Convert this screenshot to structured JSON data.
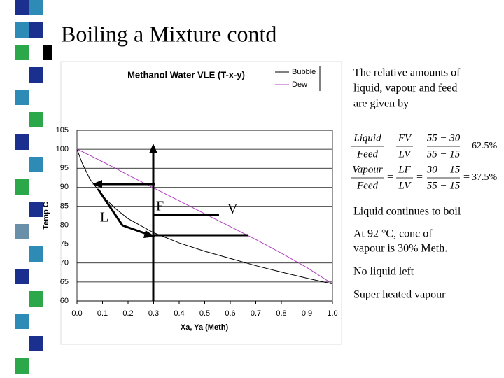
{
  "title": "Boiling a Mixture contd",
  "intro": [
    "The relative amounts of",
    "liquid, vapour and feed",
    "are given by"
  ],
  "equals": "=",
  "formulas": [
    {
      "terms": [
        [
          "Liquid",
          "Feed"
        ],
        [
          "FV",
          "LV"
        ],
        [
          "55 − 30",
          "55 − 15"
        ]
      ],
      "result": "62.5%"
    },
    {
      "terms": [
        [
          "Vapour",
          "Feed"
        ],
        [
          "LF",
          "LV"
        ],
        [
          "30 − 15",
          "55 − 15"
        ]
      ],
      "result": "37.5%"
    }
  ],
  "notes": [
    [
      "Liquid continues to boil"
    ],
    [
      "At 92 °C, conc of",
      "vapour is 30% Meth."
    ],
    [
      "No liquid left"
    ],
    [
      "Super heated vapour"
    ]
  ],
  "chart_data": {
    "type": "line",
    "title": "Methanol Water VLE (T-x-y)",
    "x_label": "Xa, Ya (Meth)",
    "y_label": "Temp C",
    "x": [
      0,
      0.02,
      0.05,
      0.1,
      0.15,
      0.2,
      0.3,
      0.4,
      0.5,
      0.6,
      0.7,
      0.8,
      0.9,
      1.0
    ],
    "series": [
      {
        "name": "Bubble",
        "color": "#000000",
        "values": [
          100,
          96.4,
          92.2,
          87.7,
          84.4,
          81.7,
          78,
          75.3,
          73.1,
          71.2,
          69.3,
          67.6,
          66,
          64.5
        ]
      },
      {
        "name": "Dew",
        "color": "#b040c0",
        "values": [
          100,
          99.4,
          98.4,
          96.7,
          95,
          93.2,
          89.8,
          86.4,
          83,
          79.6,
          76.2,
          72.6,
          68.8,
          64.5
        ]
      }
    ],
    "xlim": [
      0,
      1.0
    ],
    "ylim": [
      60,
      105
    ],
    "xticks": [
      {
        "value": 0,
        "label": "0.0"
      },
      0.1,
      0.2,
      0.3,
      0.4,
      0.5,
      0.6,
      0.7,
      0.8,
      0.9,
      {
        "value": 1.0,
        "label": "1.0"
      }
    ],
    "yticks": [
      60,
      65,
      70,
      75,
      80,
      85,
      90,
      95,
      100,
      105
    ],
    "grid": true,
    "legend": "top-right",
    "annotations": [
      "L",
      "F",
      "V"
    ]
  }
}
